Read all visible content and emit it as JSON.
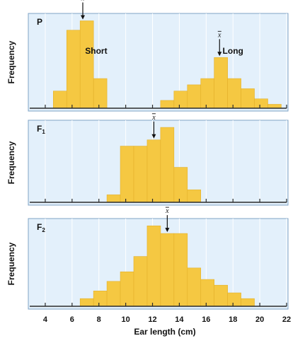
{
  "chart_data": {
    "type": "bar",
    "xlabel": "Ear length (cm)",
    "ylabel": "Frequency",
    "xticks": [
      4,
      6,
      8,
      10,
      12,
      14,
      16,
      18,
      20,
      22
    ],
    "xlim": [
      3,
      22
    ],
    "panels": [
      {
        "label": "P",
        "label_sub": "",
        "bars": [
          {
            "x0": 4.6,
            "x1": 5.6,
            "h": 0.22
          },
          {
            "x0": 5.6,
            "x1": 6.6,
            "h": 1.0
          },
          {
            "x0": 6.6,
            "x1": 7.6,
            "h": 1.12
          },
          {
            "x0": 7.6,
            "x1": 8.6,
            "h": 0.38
          },
          {
            "x0": 12.6,
            "x1": 13.6,
            "h": 0.1
          },
          {
            "x0": 13.6,
            "x1": 14.6,
            "h": 0.22
          },
          {
            "x0": 14.6,
            "x1": 15.6,
            "h": 0.3
          },
          {
            "x0": 15.6,
            "x1": 16.6,
            "h": 0.38
          },
          {
            "x0": 16.6,
            "x1": 17.6,
            "h": 0.65
          },
          {
            "x0": 17.6,
            "x1": 18.6,
            "h": 0.38
          },
          {
            "x0": 18.6,
            "x1": 19.6,
            "h": 0.25
          },
          {
            "x0": 19.6,
            "x1": 20.6,
            "h": 0.12
          },
          {
            "x0": 20.6,
            "x1": 21.6,
            "h": 0.05
          }
        ],
        "means": [
          6.8,
          17.0
        ],
        "annotations": [
          {
            "text": "Short",
            "x": 7.8,
            "h": 0.7
          },
          {
            "text": "Long",
            "x": 18.0,
            "h": 0.7
          }
        ]
      },
      {
        "label": "F",
        "label_sub": "1",
        "bars": [
          {
            "x0": 8.6,
            "x1": 9.6,
            "h": 0.06
          },
          {
            "x0": 9.6,
            "x1": 10.6,
            "h": 0.45
          },
          {
            "x0": 10.6,
            "x1": 11.6,
            "h": 0.45
          },
          {
            "x0": 11.6,
            "x1": 12.6,
            "h": 0.5
          },
          {
            "x0": 12.6,
            "x1": 13.6,
            "h": 0.6
          },
          {
            "x0": 13.6,
            "x1": 14.6,
            "h": 0.28
          },
          {
            "x0": 14.6,
            "x1": 15.6,
            "h": 0.1
          }
        ],
        "means": [
          12.1
        ],
        "annotations": []
      },
      {
        "label": "F",
        "label_sub": "2",
        "bars": [
          {
            "x0": 6.6,
            "x1": 7.6,
            "h": 0.04
          },
          {
            "x0": 7.6,
            "x1": 8.6,
            "h": 0.08
          },
          {
            "x0": 8.6,
            "x1": 9.6,
            "h": 0.13
          },
          {
            "x0": 9.6,
            "x1": 10.6,
            "h": 0.18
          },
          {
            "x0": 10.6,
            "x1": 11.6,
            "h": 0.26
          },
          {
            "x0": 11.6,
            "x1": 12.6,
            "h": 0.42
          },
          {
            "x0": 12.6,
            "x1": 13.6,
            "h": 0.38
          },
          {
            "x0": 13.6,
            "x1": 14.6,
            "h": 0.38
          },
          {
            "x0": 14.6,
            "x1": 15.6,
            "h": 0.2
          },
          {
            "x0": 15.6,
            "x1": 16.6,
            "h": 0.14
          },
          {
            "x0": 16.6,
            "x1": 17.6,
            "h": 0.11
          },
          {
            "x0": 17.6,
            "x1": 18.6,
            "h": 0.07
          },
          {
            "x0": 18.6,
            "x1": 19.6,
            "h": 0.04
          }
        ],
        "means": [
          13.1
        ],
        "annotations": []
      }
    ]
  }
}
